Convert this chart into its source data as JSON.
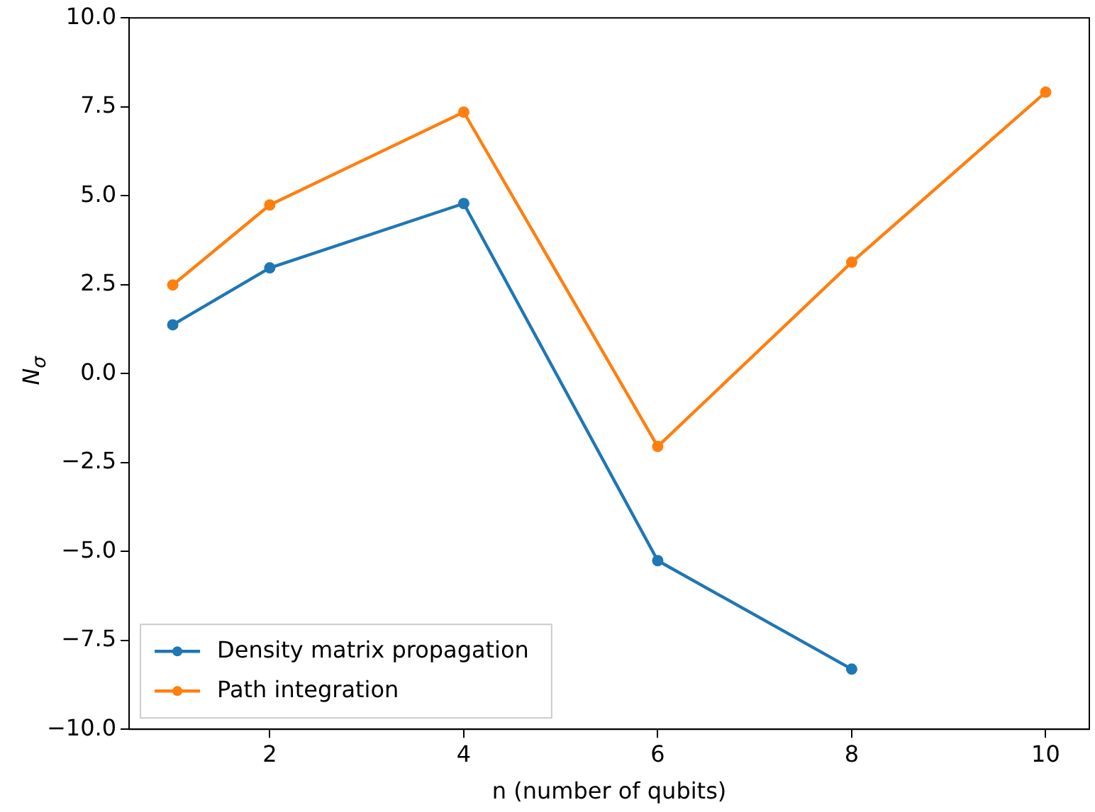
{
  "chart_data": {
    "type": "line",
    "xlabel": "n (number of qubits)",
    "ylabel": "N$_{σ}$",
    "xlim": [
      0.55,
      10.45
    ],
    "xticks": [
      2,
      4,
      6,
      8,
      10
    ],
    "ylim": [
      -10,
      10
    ],
    "yticks": [
      {
        "value": -10,
        "label": "−10.0"
      },
      {
        "value": -7.5,
        "label": "−7.5"
      },
      {
        "value": -5,
        "label": "−5.0"
      },
      {
        "value": -2.5,
        "label": "−2.5"
      },
      {
        "value": 0,
        "label": "0.0"
      },
      {
        "value": 2.5,
        "label": "2.5"
      },
      {
        "value": 5,
        "label": "5.0"
      },
      {
        "value": 7.5,
        "label": "7.5"
      },
      {
        "value": 10,
        "label": "10.0"
      }
    ],
    "series": [
      {
        "name": "Density matrix propagation",
        "color": "#1f77b4",
        "x": [
          1,
          2,
          4,
          6,
          8
        ],
        "values": [
          1.37,
          2.97,
          4.78,
          -5.26,
          -8.31
        ]
      },
      {
        "name": "Path integration",
        "color": "#ff7f0e",
        "x": [
          1,
          2,
          4,
          6,
          8,
          10
        ],
        "values": [
          2.49,
          4.74,
          7.35,
          -2.05,
          3.13,
          7.91
        ]
      }
    ],
    "legend": "bottom left",
    "marker": "circle",
    "line_style": "solid",
    "grid": false
  }
}
